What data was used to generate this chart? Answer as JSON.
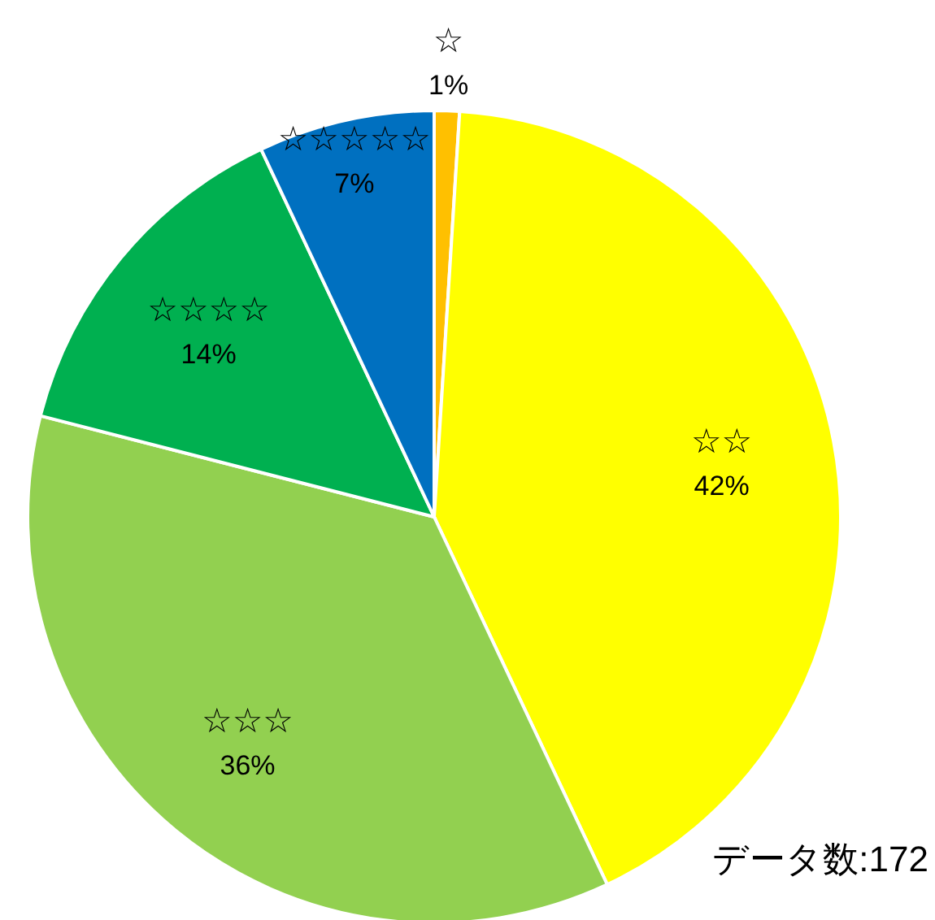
{
  "chart_data": {
    "type": "pie",
    "categories": [
      "☆",
      "☆☆",
      "☆☆☆",
      "☆☆☆☆",
      "☆☆☆☆☆"
    ],
    "values": [
      1,
      42,
      36,
      14,
      7
    ],
    "colors": [
      "#ffc000",
      "#ffff00",
      "#92d050",
      "#00b050",
      "#0070c0"
    ],
    "value_labels": [
      "1%",
      "42%",
      "36%",
      "14%",
      "7%"
    ],
    "annotations": [
      "データ数:172"
    ]
  }
}
